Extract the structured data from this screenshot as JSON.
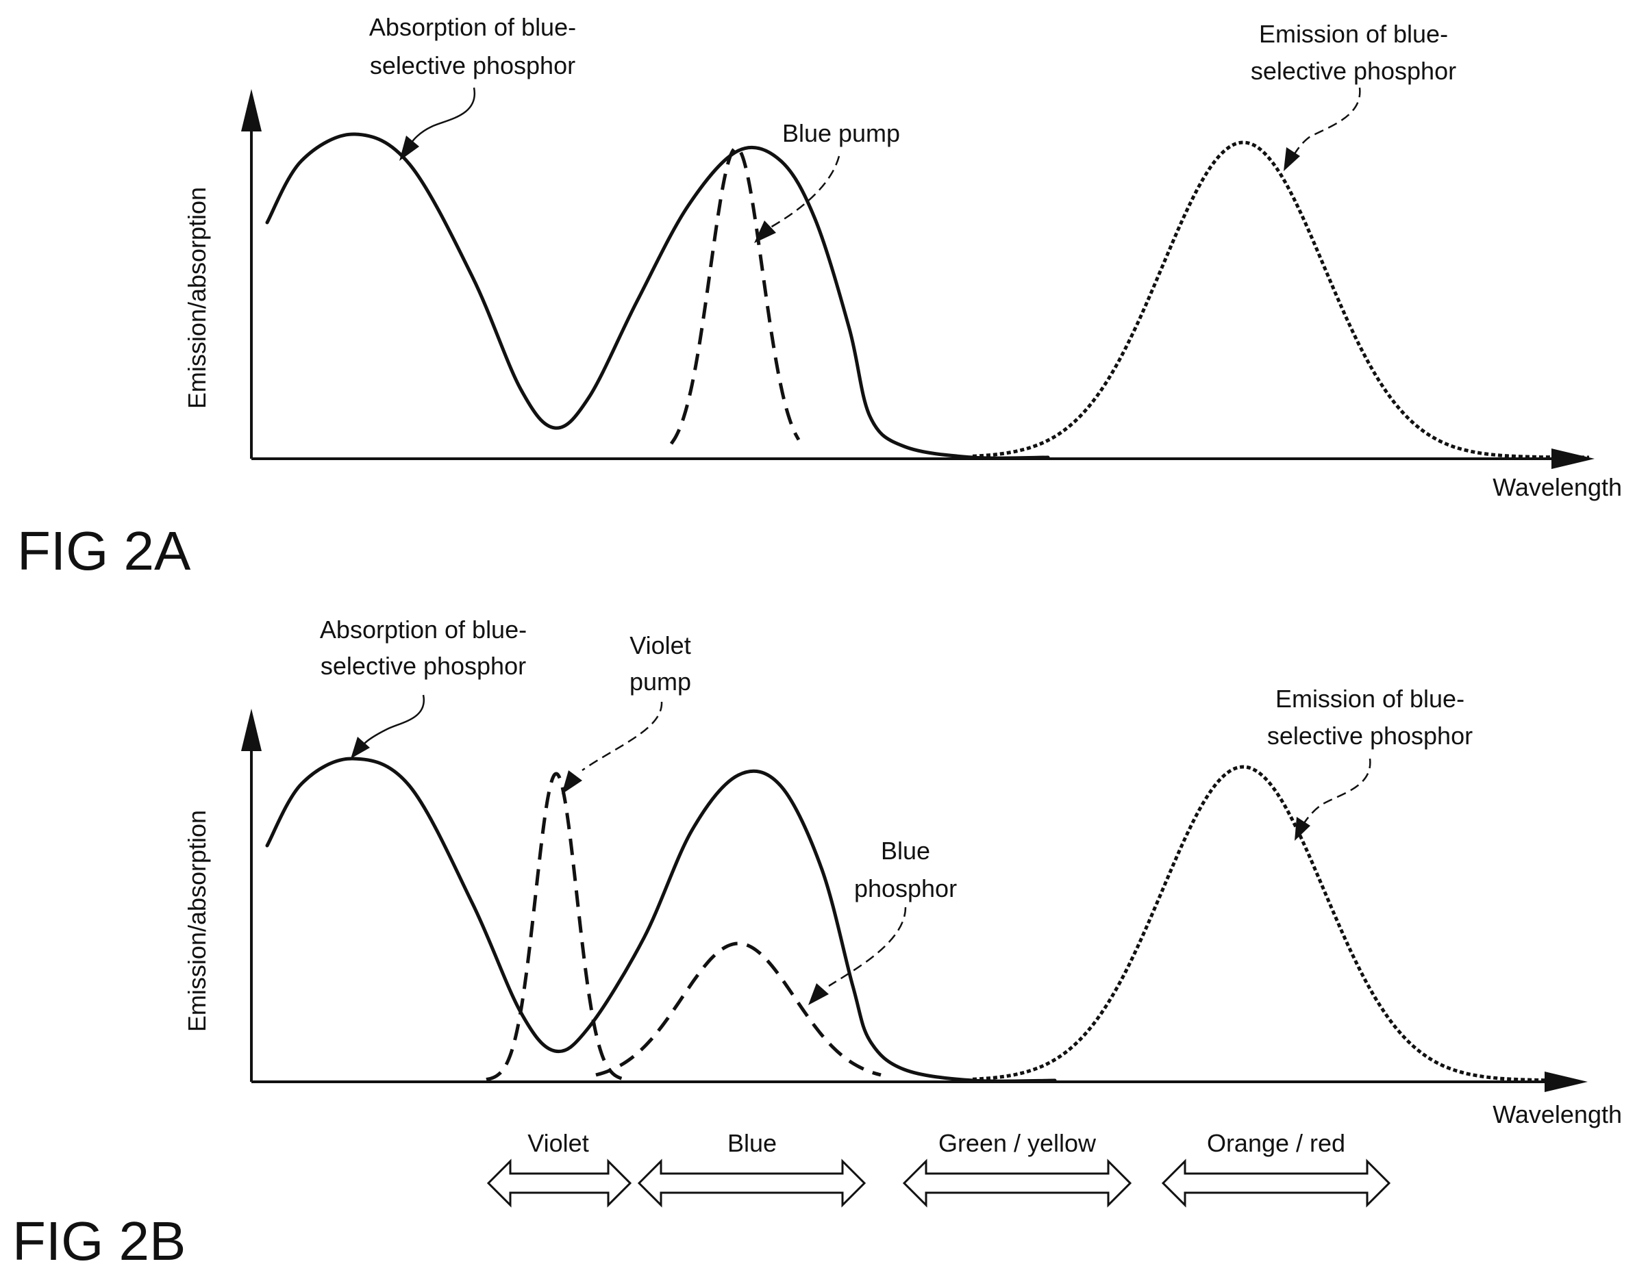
{
  "fig_a": {
    "title": "FIG 2A",
    "y_axis_label": "Emission/absorption",
    "x_axis_label": "Wavelength",
    "labels": {
      "absorption_line1": "Absorption of blue-",
      "absorption_line2": "selective phosphor",
      "blue_pump": "Blue pump",
      "emission_line1": "Emission of blue-",
      "emission_line2": "selective phosphor"
    }
  },
  "fig_b": {
    "title": "FIG 2B",
    "y_axis_label": "Emission/absorption",
    "x_axis_label": "Wavelength",
    "labels": {
      "absorption_line1": "Absorption of blue-",
      "absorption_line2": "selective phosphor",
      "violet_pump_line1": "Violet",
      "violet_pump_line2": "pump",
      "blue_phosphor_line1": "Blue",
      "blue_phosphor_line2": "phosphor",
      "emission_line1": "Emission of blue-",
      "emission_line2": "selective phosphor"
    },
    "bands": [
      "Violet",
      "Blue",
      "Green / yellow",
      "Orange / red"
    ]
  }
}
